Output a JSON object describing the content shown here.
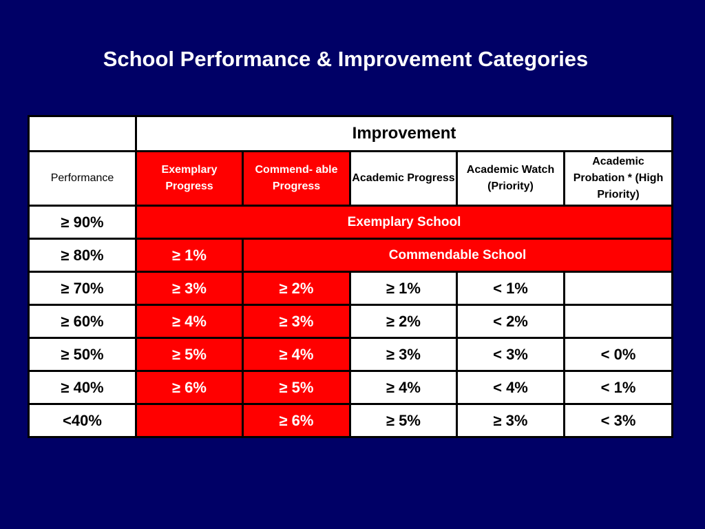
{
  "title": "School Performance & Improvement Categories",
  "colors": {
    "background": "#000066",
    "highlight": "#ff0000",
    "cell": "#ffffff",
    "border": "#000000"
  },
  "table": {
    "improvement_header": "Improvement",
    "performance_label": "Performance",
    "columns": [
      {
        "label": "Exemplary Progress",
        "highlight": true
      },
      {
        "label": "Commend- able Progress",
        "highlight": true
      },
      {
        "label": "Academic Progress",
        "highlight": false
      },
      {
        "label": "Academic Watch (Priority)",
        "highlight": false
      },
      {
        "label": "Academic Probation * (High Priority)",
        "highlight": false
      }
    ],
    "rows": [
      {
        "performance": "≥ 90%",
        "span_label": "Exemplary School"
      },
      {
        "performance": "≥ 80%",
        "cells": [
          "≥ 1%"
        ],
        "span_label": "Commendable School"
      },
      {
        "performance": "≥ 70%",
        "cells": [
          "≥ 3%",
          "≥ 2%",
          "≥ 1%",
          "< 1%",
          ""
        ]
      },
      {
        "performance": "≥ 60%",
        "cells": [
          "≥ 4%",
          "≥ 3%",
          "≥ 2%",
          "< 2%",
          ""
        ]
      },
      {
        "performance": "≥ 50%",
        "cells": [
          "≥ 5%",
          "≥ 4%",
          "≥ 3%",
          "< 3%",
          "< 0%"
        ]
      },
      {
        "performance": "≥ 40%",
        "cells": [
          "≥ 6%",
          "≥ 5%",
          "≥ 4%",
          "< 4%",
          "< 1%"
        ]
      },
      {
        "performance": "<40%",
        "cells": [
          "",
          "≥ 6%",
          "≥ 5%",
          "≥ 3%",
          "< 3%"
        ]
      }
    ]
  }
}
